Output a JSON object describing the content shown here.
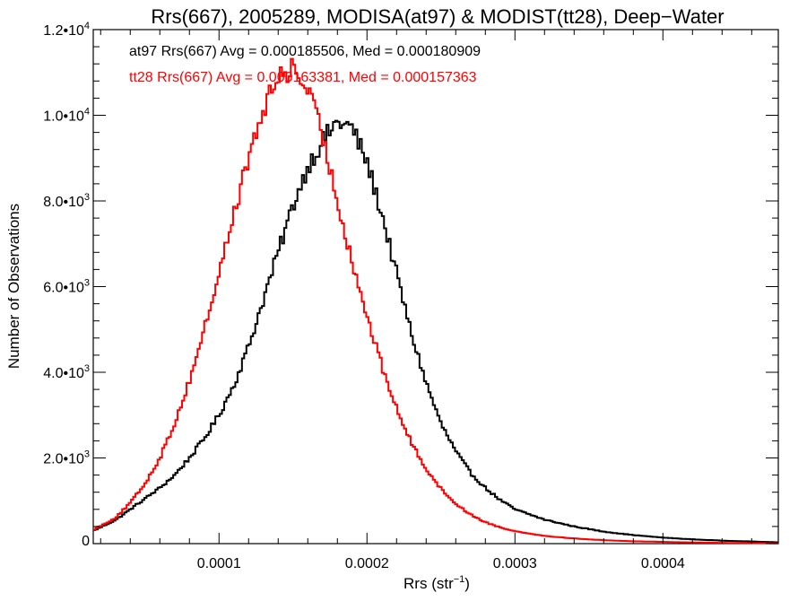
{
  "chart_data": {
    "type": "histogram",
    "title": "Rrs(667), 2005289, MODISA(at97) & MODIST(tt28), Deep−Water",
    "xlabel": "Rrs (str",
    "xlabel_sup": "−1",
    "xlabel_close": ")",
    "ylabel": "Number of Observations",
    "xlim": [
      1.5e-05,
      0.000478
    ],
    "ylim": [
      0,
      12000
    ],
    "x_ticks": [
      {
        "value": 0.0001,
        "label": "0.0001"
      },
      {
        "value": 0.0002,
        "label": "0.0002"
      },
      {
        "value": 0.0003,
        "label": "0.0003"
      },
      {
        "value": 0.0004,
        "label": "0.0004"
      }
    ],
    "y_ticks": [
      {
        "value": 0,
        "label": "0",
        "sup": ""
      },
      {
        "value": 2000,
        "label": "2.0•10",
        "sup": "3"
      },
      {
        "value": 4000,
        "label": "4.0•10",
        "sup": "3"
      },
      {
        "value": 6000,
        "label": "6.0•10",
        "sup": "3"
      },
      {
        "value": 8000,
        "label": "8.0•10",
        "sup": "3"
      },
      {
        "value": 10000,
        "label": "1.0•10",
        "sup": "4"
      },
      {
        "value": 12000,
        "label": "1.2•10",
        "sup": "4"
      }
    ],
    "annotations": [
      {
        "text": "at97 Rrs(667) Avg = 0.000185506, Med = 0.000180909",
        "color": "#000000"
      },
      {
        "text": "tt28 Rrs(667) Avg = 0.000163381, Med = 0.000157363",
        "color": "#ff0000"
      }
    ],
    "series": [
      {
        "color": "#000000",
        "x": [
          1.5e-05,
          3e-05,
          4e-05,
          5e-05,
          6e-05,
          7e-05,
          8e-05,
          9e-05,
          0.0001,
          0.00011,
          0.00012,
          0.00013,
          0.00014,
          0.00015,
          0.00016,
          0.00017,
          0.00018,
          0.00019,
          0.0002,
          0.00021,
          0.00022,
          0.00023,
          0.00024,
          0.00025,
          0.00026,
          0.00027,
          0.00028,
          0.00029,
          0.0003,
          0.00032,
          0.00034,
          0.00036,
          0.00038,
          0.0004,
          0.00042,
          0.00044,
          0.00046,
          0.000478
        ],
        "y": [
          300,
          550,
          800,
          1050,
          1300,
          1600,
          2000,
          2450,
          3000,
          3700,
          4600,
          5700,
          6800,
          7900,
          8800,
          9400,
          9850,
          9700,
          8900,
          7700,
          6300,
          4900,
          3750,
          2800,
          2150,
          1650,
          1300,
          1020,
          800,
          560,
          400,
          280,
          200,
          140,
          100,
          70,
          50,
          30
        ]
      },
      {
        "color": "#ff0000",
        "x": [
          1.5e-05,
          3e-05,
          4e-05,
          5e-05,
          6e-05,
          7e-05,
          8e-05,
          9e-05,
          0.0001,
          0.00011,
          0.00012,
          0.00013,
          0.00014,
          0.00015,
          0.00016,
          0.00017,
          0.00018,
          0.00019,
          0.0002,
          0.00021,
          0.00022,
          0.00023,
          0.00024,
          0.00025,
          0.00026,
          0.00027,
          0.00028,
          0.00029,
          0.0003,
          0.00032,
          0.00034,
          0.00036,
          0.00038,
          0.0004,
          0.00042,
          0.00044,
          0.00046,
          0.000478
        ],
        "y": [
          320,
          600,
          950,
          1400,
          2000,
          2800,
          3800,
          5000,
          6300,
          7700,
          9000,
          10100,
          10900,
          11100,
          10600,
          9500,
          8000,
          6600,
          5300,
          4150,
          3150,
          2350,
          1750,
          1280,
          930,
          680,
          500,
          380,
          290,
          180,
          120,
          80,
          55,
          40,
          28,
          18,
          12,
          8
        ]
      }
    ]
  }
}
